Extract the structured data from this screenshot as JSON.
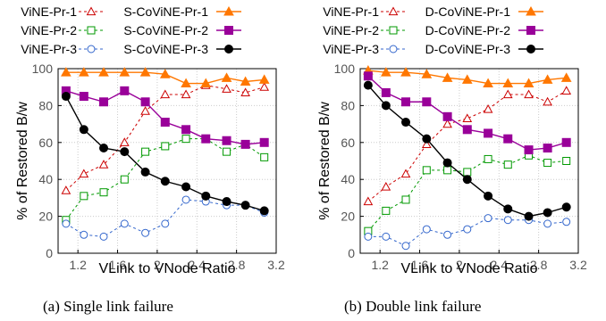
{
  "chart_data": [
    {
      "type": "line",
      "caption": "(a) Single link failure",
      "xlabel": "VLink to VNode Ratio",
      "ylabel": "% of Restored B/w",
      "xlim": [
        1.0,
        3.2
      ],
      "ylim": [
        0,
        100
      ],
      "xticks": [
        "1.2",
        "1.6",
        "2",
        "2.4",
        "2.8",
        "3.2"
      ],
      "yticks": [
        "0",
        "20",
        "40",
        "60",
        "80",
        "100"
      ],
      "grid": true,
      "legend_position": "top",
      "x": [
        1.08,
        1.26,
        1.46,
        1.67,
        1.88,
        2.08,
        2.29,
        2.49,
        2.7,
        2.89,
        3.08
      ],
      "series": [
        {
          "name": "ViNE-Pr-1",
          "color": "#cc0000",
          "dash": "dashed",
          "marker": "triangle-open",
          "values": [
            34,
            43,
            48,
            60,
            77,
            86,
            86,
            91,
            89,
            87,
            90
          ]
        },
        {
          "name": "ViNE-Pr-2",
          "color": "#009900",
          "dash": "dashed",
          "marker": "square-open",
          "values": [
            18,
            31,
            33,
            40,
            55,
            58,
            62,
            62,
            55,
            59,
            52
          ]
        },
        {
          "name": "ViNE-Pr-3",
          "color": "#3366cc",
          "dash": "dashed",
          "marker": "circle-open",
          "values": [
            16,
            10,
            9,
            16,
            11,
            16,
            29,
            28,
            26,
            26,
            22
          ]
        },
        {
          "name": "S-CoViNE-Pr-1",
          "color": "#ff7700",
          "dash": "solid",
          "marker": "triangle-filled",
          "values": [
            98,
            98,
            98,
            98,
            98,
            97,
            92,
            92,
            95,
            93,
            94
          ]
        },
        {
          "name": "S-CoViNE-Pr-2",
          "color": "#990099",
          "dash": "solid",
          "marker": "square-filled",
          "values": [
            88,
            85,
            82,
            88,
            82,
            71,
            67,
            62,
            61,
            59,
            60
          ]
        },
        {
          "name": "S-CoViNE-Pr-3",
          "color": "#000000",
          "dash": "solid",
          "marker": "circle-filled",
          "values": [
            85,
            67,
            57,
            55,
            44,
            39,
            36,
            31,
            28,
            26,
            23
          ]
        }
      ]
    },
    {
      "type": "line",
      "caption": "(b) Double link failure",
      "xlabel": "VLink to VNode Ratio",
      "ylabel": "% of Restored B/w",
      "xlim": [
        1.0,
        3.2
      ],
      "ylim": [
        0,
        100
      ],
      "xticks": [
        "1.2",
        "1.6",
        "2",
        "2.4",
        "2.8",
        "3.2"
      ],
      "yticks": [
        "0",
        "20",
        "40",
        "60",
        "80",
        "100"
      ],
      "grid": true,
      "legend_position": "top",
      "x": [
        1.08,
        1.26,
        1.46,
        1.67,
        1.88,
        2.08,
        2.29,
        2.49,
        2.7,
        2.89,
        3.08
      ],
      "series": [
        {
          "name": "ViNE-Pr-1",
          "color": "#cc0000",
          "dash": "dashed",
          "marker": "triangle-open",
          "values": [
            28,
            36,
            43,
            59,
            70,
            73,
            78,
            86,
            86,
            82,
            88
          ]
        },
        {
          "name": "ViNE-Pr-2",
          "color": "#009900",
          "dash": "dashed",
          "marker": "square-open",
          "values": [
            12,
            23,
            29,
            45,
            45,
            44,
            51,
            48,
            53,
            49,
            50
          ]
        },
        {
          "name": "ViNE-Pr-3",
          "color": "#3366cc",
          "dash": "dashed",
          "marker": "circle-open",
          "values": [
            9,
            9,
            4,
            13,
            10,
            13,
            19,
            18,
            18,
            16,
            17
          ]
        },
        {
          "name": "D-CoViNE-Pr-1",
          "color": "#ff7700",
          "dash": "solid",
          "marker": "triangle-filled",
          "values": [
            99,
            98,
            98,
            97,
            95,
            94,
            92,
            92,
            92,
            94,
            95
          ]
        },
        {
          "name": "D-CoViNE-Pr-2",
          "color": "#990099",
          "dash": "solid",
          "marker": "square-filled",
          "values": [
            96,
            87,
            82,
            82,
            74,
            67,
            65,
            62,
            56,
            57,
            60
          ]
        },
        {
          "name": "D-CoViNE-Pr-3",
          "color": "#000000",
          "dash": "solid",
          "marker": "circle-filled",
          "values": [
            91,
            80,
            71,
            62,
            49,
            40,
            31,
            24,
            20,
            22,
            25
          ]
        }
      ]
    }
  ]
}
